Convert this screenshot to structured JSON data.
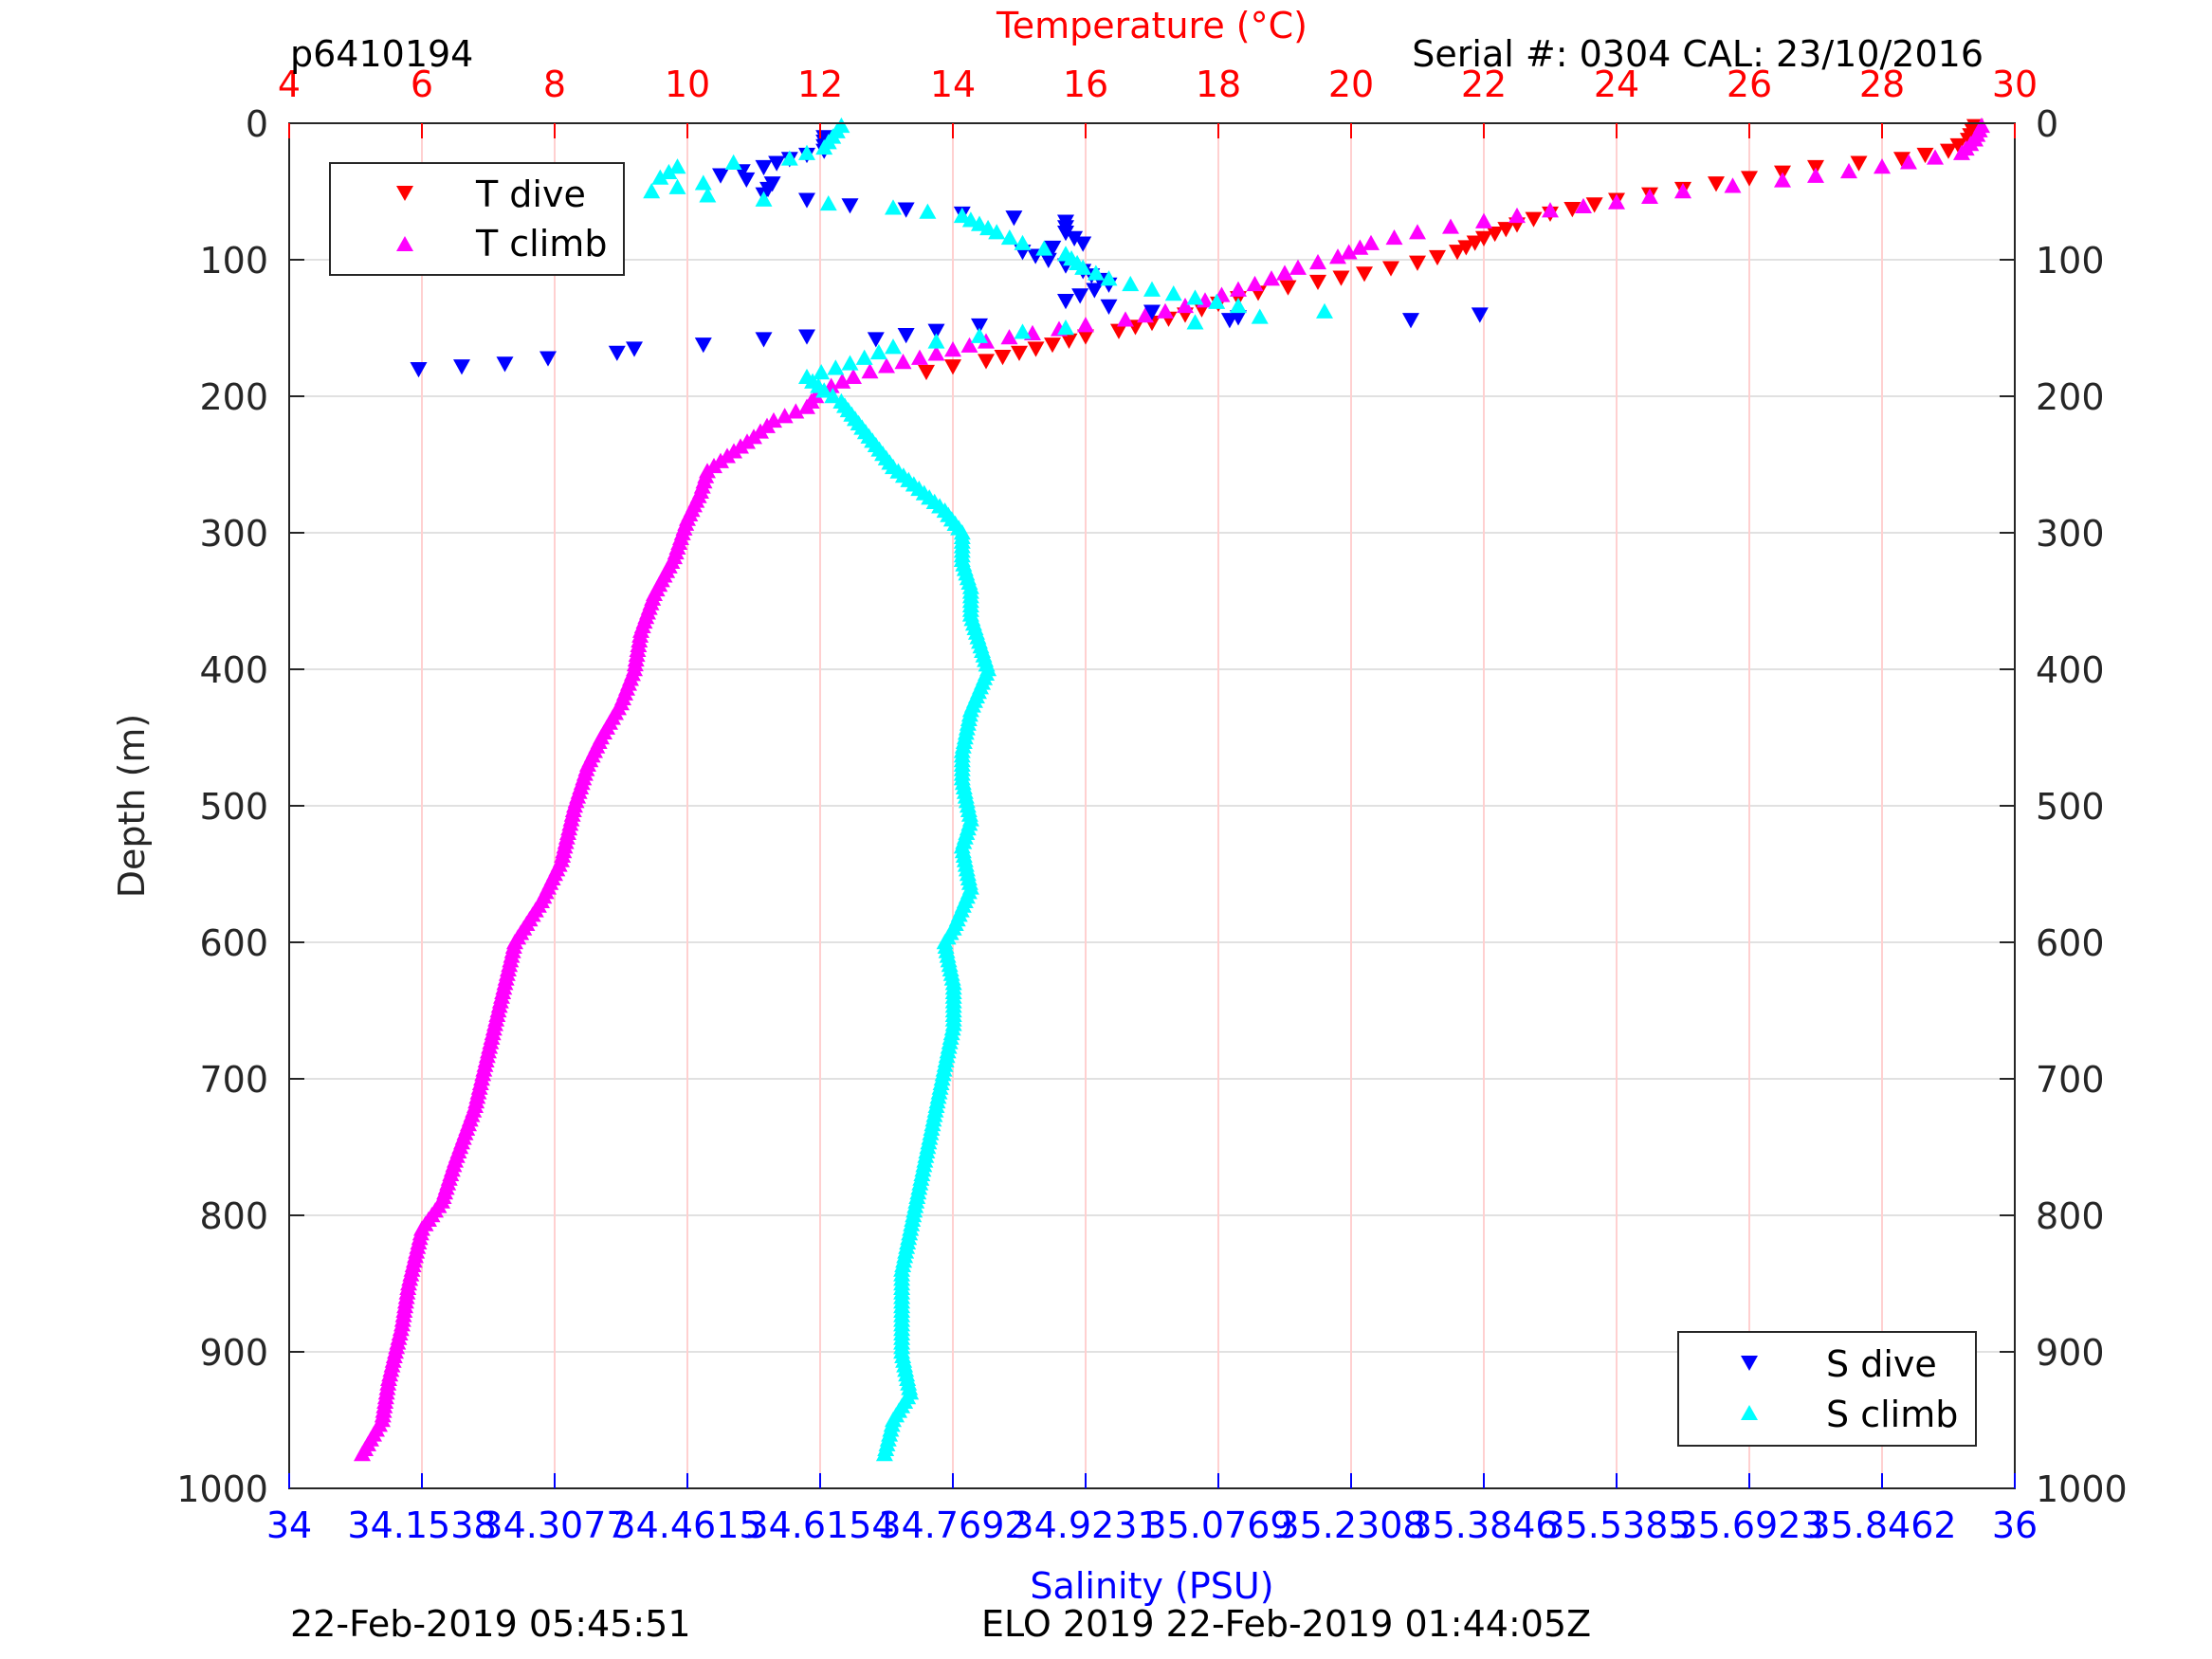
{
  "header": {
    "left": "p6410194",
    "right": "Serial #: 0304  CAL: 23/10/2016"
  },
  "footer": {
    "left": "22-Feb-2019 05:45:51",
    "right": "ELO 2019 22-Feb-2019 01:44:05Z"
  },
  "colors": {
    "t_dive": "#ff0000",
    "t_climb": "#ff00ff",
    "s_dive": "#0000ff",
    "s_climb": "#00ffff",
    "temp_axis": "#ff0000",
    "sal_axis": "#0000ff"
  },
  "chart_data": {
    "type": "scatter",
    "title": "",
    "ylabel": "Depth (m)",
    "ylim": [
      0,
      1000
    ],
    "y_reversed": true,
    "y_ticks": [
      "0",
      "100",
      "200",
      "300",
      "400",
      "500",
      "600",
      "700",
      "800",
      "900",
      "1000"
    ],
    "temperature_axis": {
      "label": "Temperature (°C)",
      "position": "top",
      "lim": [
        4,
        30
      ],
      "ticks": [
        "4",
        "6",
        "8",
        "10",
        "12",
        "14",
        "16",
        "18",
        "20",
        "22",
        "24",
        "26",
        "28",
        "30"
      ]
    },
    "salinity_axis": {
      "label": "Salinity (PSU)",
      "position": "bottom",
      "lim": [
        34,
        36
      ],
      "ticks": [
        "34",
        "34.1538",
        "34.3077",
        "34.4615",
        "34.6154",
        "34.7692",
        "34.9231",
        "35.0769",
        "35.2308",
        "35.3846",
        "35.5385",
        "35.6923",
        "35.8462",
        "36"
      ]
    },
    "grid": true,
    "legends": [
      {
        "placement": "top-left",
        "entries": [
          "T dive",
          "T climb"
        ]
      },
      {
        "placement": "bottom-right",
        "entries": [
          "S dive",
          "S climb"
        ]
      }
    ],
    "series": [
      {
        "name": "T dive",
        "axis": "temperature",
        "marker": "triangle-down",
        "points": [
          [
            29.4,
            2
          ],
          [
            29.3,
            12
          ],
          [
            29.0,
            20
          ],
          [
            28.3,
            26
          ],
          [
            27.0,
            32
          ],
          [
            26.0,
            40
          ],
          [
            25.0,
            48
          ],
          [
            24.0,
            56
          ],
          [
            23.0,
            66
          ],
          [
            22.5,
            74
          ],
          [
            22.0,
            84
          ],
          [
            21.6,
            94
          ],
          [
            21.0,
            102
          ],
          [
            20.2,
            110
          ],
          [
            19.5,
            116
          ],
          [
            18.6,
            124
          ],
          [
            18.0,
            132
          ],
          [
            17.5,
            140
          ],
          [
            17.0,
            146
          ],
          [
            16.5,
            152
          ],
          [
            16.0,
            156
          ],
          [
            15.5,
            162
          ],
          [
            15.0,
            168
          ],
          [
            14.5,
            174
          ],
          [
            14.0,
            178
          ],
          [
            13.6,
            182
          ]
        ]
      },
      {
        "name": "T climb",
        "axis": "temperature",
        "marker": "triangle-up",
        "points": [
          [
            29.5,
            2
          ],
          [
            29.4,
            12
          ],
          [
            29.2,
            22
          ],
          [
            28.0,
            32
          ],
          [
            26.5,
            42
          ],
          [
            25.0,
            50
          ],
          [
            24.0,
            58
          ],
          [
            23.0,
            64
          ],
          [
            22.0,
            72
          ],
          [
            21.0,
            80
          ],
          [
            20.3,
            88
          ],
          [
            19.8,
            98
          ],
          [
            19.2,
            106
          ],
          [
            18.8,
            114
          ],
          [
            18.3,
            122
          ],
          [
            17.8,
            130
          ],
          [
            17.2,
            138
          ],
          [
            16.6,
            144
          ],
          [
            16.0,
            148
          ],
          [
            15.2,
            154
          ],
          [
            14.5,
            160
          ],
          [
            14.0,
            166
          ],
          [
            13.5,
            172
          ],
          [
            13.0,
            178
          ],
          [
            12.5,
            186
          ],
          [
            12.0,
            196
          ],
          [
            11.8,
            208
          ],
          [
            11.3,
            218
          ],
          [
            11.0,
            230
          ],
          [
            10.6,
            244
          ],
          [
            10.3,
            255
          ],
          [
            10.2,
            270
          ],
          [
            10.0,
            290
          ],
          [
            9.8,
            318
          ],
          [
            9.5,
            345
          ],
          [
            9.3,
            372
          ],
          [
            9.2,
            400
          ],
          [
            9.0,
            425
          ],
          [
            8.7,
            450
          ],
          [
            8.5,
            470
          ],
          [
            8.3,
            500
          ],
          [
            8.1,
            540
          ],
          [
            7.8,
            570
          ],
          [
            7.4,
            600
          ],
          [
            7.2,
            640
          ],
          [
            7.0,
            680
          ],
          [
            6.8,
            720
          ],
          [
            6.5,
            760
          ],
          [
            6.3,
            790
          ],
          [
            6.0,
            810
          ],
          [
            5.8,
            850
          ],
          [
            5.7,
            880
          ],
          [
            5.5,
            920
          ],
          [
            5.4,
            950
          ],
          [
            5.1,
            975
          ]
        ]
      },
      {
        "name": "S dive",
        "axis": "salinity",
        "marker": "triangle-down",
        "points": [
          [
            34.62,
            10
          ],
          [
            34.62,
            20
          ],
          [
            34.58,
            26
          ],
          [
            34.55,
            32
          ],
          [
            34.5,
            38
          ],
          [
            34.56,
            44
          ],
          [
            34.55,
            52
          ],
          [
            34.65,
            60
          ],
          [
            34.78,
            66
          ],
          [
            34.9,
            72
          ],
          [
            34.9,
            80
          ],
          [
            34.92,
            88
          ],
          [
            34.85,
            94
          ],
          [
            34.88,
            100
          ],
          [
            34.92,
            108
          ],
          [
            34.95,
            118
          ],
          [
            34.9,
            130
          ],
          [
            35.0,
            138
          ],
          [
            35.1,
            142
          ],
          [
            35.3,
            144
          ],
          [
            35.38,
            140
          ],
          [
            34.8,
            148
          ],
          [
            34.75,
            152
          ],
          [
            34.68,
            158
          ],
          [
            34.6,
            156
          ],
          [
            34.55,
            158
          ],
          [
            34.48,
            162
          ],
          [
            34.4,
            165
          ],
          [
            34.38,
            168
          ],
          [
            34.3,
            172
          ],
          [
            34.25,
            176
          ],
          [
            34.2,
            178
          ],
          [
            34.15,
            180
          ]
        ]
      },
      {
        "name": "S climb",
        "axis": "salinity",
        "marker": "triangle-up",
        "points": [
          [
            34.64,
            2
          ],
          [
            34.63,
            10
          ],
          [
            34.62,
            18
          ],
          [
            34.58,
            26
          ],
          [
            34.45,
            32
          ],
          [
            34.43,
            40
          ],
          [
            34.48,
            44
          ],
          [
            34.42,
            50
          ],
          [
            34.55,
            56
          ],
          [
            34.7,
            62
          ],
          [
            34.78,
            68
          ],
          [
            34.8,
            74
          ],
          [
            34.82,
            80
          ],
          [
            34.85,
            88
          ],
          [
            34.9,
            96
          ],
          [
            34.92,
            106
          ],
          [
            34.95,
            114
          ],
          [
            35.0,
            122
          ],
          [
            35.05,
            128
          ],
          [
            35.1,
            134
          ],
          [
            35.2,
            138
          ],
          [
            35.05,
            146
          ],
          [
            34.9,
            150
          ],
          [
            34.8,
            156
          ],
          [
            34.7,
            164
          ],
          [
            34.65,
            176
          ],
          [
            34.6,
            186
          ],
          [
            34.62,
            196
          ],
          [
            34.64,
            204
          ],
          [
            34.66,
            220
          ],
          [
            34.68,
            236
          ],
          [
            34.7,
            252
          ],
          [
            34.73,
            268
          ],
          [
            34.76,
            284
          ],
          [
            34.78,
            300
          ],
          [
            34.78,
            320
          ],
          [
            34.79,
            340
          ],
          [
            34.79,
            360
          ],
          [
            34.8,
            380
          ],
          [
            34.81,
            400
          ],
          [
            34.79,
            430
          ],
          [
            34.78,
            460
          ],
          [
            34.78,
            480
          ],
          [
            34.79,
            510
          ],
          [
            34.78,
            530
          ],
          [
            34.79,
            560
          ],
          [
            34.77,
            590
          ],
          [
            34.76,
            600
          ],
          [
            34.77,
            630
          ],
          [
            34.77,
            660
          ],
          [
            34.76,
            690
          ],
          [
            34.75,
            720
          ],
          [
            34.74,
            750
          ],
          [
            34.73,
            780
          ],
          [
            34.72,
            810
          ],
          [
            34.71,
            840
          ],
          [
            34.71,
            870
          ],
          [
            34.71,
            900
          ],
          [
            34.72,
            930
          ],
          [
            34.7,
            950
          ],
          [
            34.69,
            975
          ]
        ]
      }
    ]
  }
}
